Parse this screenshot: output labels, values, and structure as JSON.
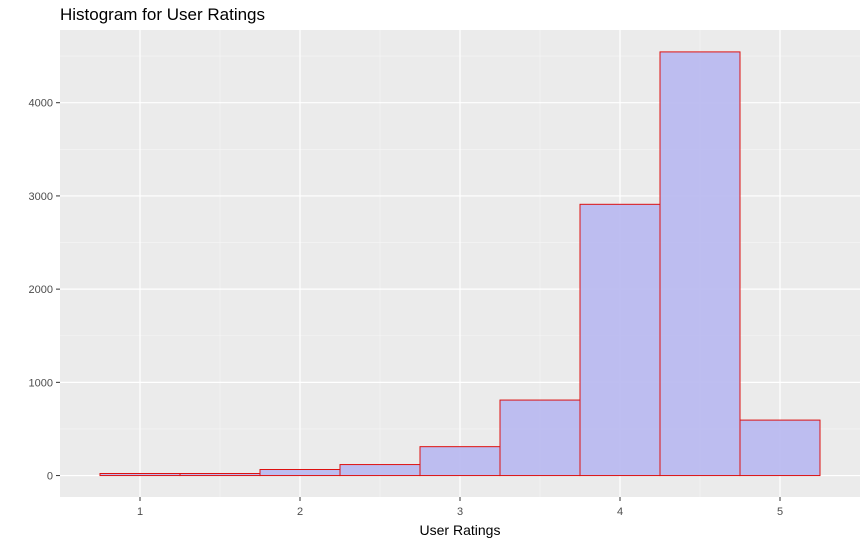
{
  "chart_data": {
    "type": "bar",
    "title": "Histogram for User Ratings",
    "xlabel": "User Ratings",
    "ylabel": "",
    "binwidth": 0.5,
    "bins": [
      {
        "x_start": 0.75,
        "x_end": 1.25,
        "count": 22
      },
      {
        "x_start": 1.25,
        "x_end": 1.75,
        "count": 22
      },
      {
        "x_start": 1.75,
        "x_end": 2.25,
        "count": 65
      },
      {
        "x_start": 2.25,
        "x_end": 2.75,
        "count": 118
      },
      {
        "x_start": 2.75,
        "x_end": 3.25,
        "count": 310
      },
      {
        "x_start": 3.25,
        "x_end": 3.75,
        "count": 810
      },
      {
        "x_start": 3.75,
        "x_end": 4.25,
        "count": 2910
      },
      {
        "x_start": 4.25,
        "x_end": 4.75,
        "count": 4545
      },
      {
        "x_start": 4.75,
        "x_end": 5.25,
        "count": 595
      }
    ],
    "xlim": [
      0.5,
      5.5
    ],
    "ylim": [
      -230,
      4780
    ],
    "x_ticks": [
      "1",
      "2",
      "3",
      "4",
      "5"
    ],
    "y_ticks": [
      "0",
      "1000",
      "2000",
      "3000",
      "4000"
    ],
    "bar_fill": "#bbbbf0",
    "bar_stroke": "#dd1111",
    "panel_background": "#ebebeb",
    "grid": true
  }
}
